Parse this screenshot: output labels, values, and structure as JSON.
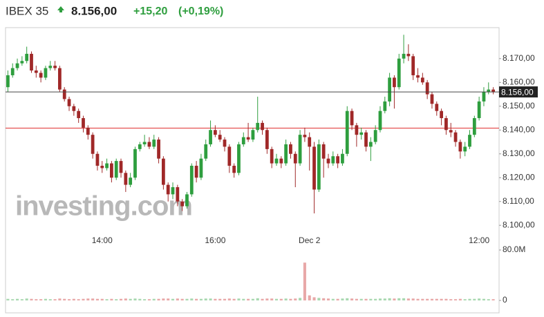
{
  "header": {
    "index": "IBEX 35",
    "price": "8.156,00",
    "change": "+15,20",
    "change_pct": "(+0,19%)"
  },
  "watermark": "investing.com",
  "chart_data": {
    "type": "candlestick",
    "categories": [
      null,
      null,
      null,
      null,
      null,
      null,
      null,
      null,
      null,
      null,
      null,
      null,
      null,
      null,
      null,
      null,
      null,
      null,
      null,
      null,
      "14:00",
      null,
      null,
      null,
      null,
      null,
      null,
      null,
      null,
      null,
      null,
      null,
      null,
      null,
      null,
      null,
      null,
      null,
      null,
      null,
      null,
      null,
      null,
      null,
      "16:00",
      null,
      null,
      null,
      null,
      null,
      null,
      null,
      null,
      null,
      null,
      null,
      null,
      null,
      null,
      null,
      null,
      null,
      null,
      null,
      "Dec 2",
      null,
      null,
      null,
      null,
      null,
      null,
      null,
      null,
      null,
      null,
      null,
      null,
      null,
      null,
      null,
      null,
      null,
      null,
      null,
      null,
      null,
      null,
      null,
      null,
      null,
      null,
      null,
      null,
      null,
      null,
      null,
      null,
      null,
      null,
      null,
      "12:00",
      null,
      null,
      null
    ],
    "open": [
      8158,
      8163,
      8166,
      8168,
      8169,
      8172,
      8165,
      8164,
      8162,
      8166,
      8167,
      8166,
      8157,
      8153,
      8150,
      8148,
      8145,
      8141,
      8138,
      8130,
      8125,
      8124,
      8126,
      8120,
      8127,
      8122,
      8117,
      8120,
      8132,
      8134,
      8135,
      8133,
      8136,
      8128,
      8117,
      8113,
      8116,
      8110,
      8108,
      8113,
      8125,
      8120,
      8128,
      8134,
      8140,
      8138,
      8136,
      8133,
      8125,
      8122,
      8134,
      8137,
      8136,
      8140,
      8143,
      8140,
      8132,
      8126,
      8128,
      8126,
      8134,
      8130,
      8126,
      8138,
      8137,
      8133,
      8115,
      8134,
      8128,
      8126,
      8129,
      8126,
      8130,
      8148,
      8142,
      8138,
      8139,
      8133,
      8135,
      8140,
      8148,
      8152,
      8162,
      8158,
      8170,
      8172,
      8171,
      8163,
      8162,
      8160,
      8155,
      8151,
      8148,
      8145,
      8140,
      8139,
      8135,
      8131,
      8133,
      8138,
      8145,
      8152,
      8156,
      8157
    ],
    "high": [
      8165,
      8168,
      8170,
      8171,
      8175,
      8173,
      8167,
      8165,
      8167,
      8169,
      8169,
      8167,
      8158,
      8154,
      8151,
      8149,
      8146,
      8142,
      8139,
      8131,
      8127,
      8128,
      8127,
      8128,
      8128,
      8123,
      8122,
      8133,
      8135,
      8138,
      8137,
      8138,
      8137,
      8129,
      8118,
      8118,
      8117,
      8111,
      8114,
      8126,
      8127,
      8130,
      8136,
      8144,
      8142,
      8140,
      8137,
      8134,
      8126,
      8135,
      8139,
      8143,
      8141,
      8154,
      8144,
      8141,
      8133,
      8130,
      8129,
      8136,
      8135,
      8131,
      8140,
      8141,
      8139,
      8135,
      8136,
      8135,
      8130,
      8131,
      8130,
      8132,
      8150,
      8149,
      8143,
      8141,
      8140,
      8137,
      8142,
      8150,
      8154,
      8164,
      8163,
      8172,
      8180,
      8176,
      8172,
      8166,
      8164,
      8161,
      8156,
      8152,
      8149,
      8146,
      8143,
      8140,
      8136,
      8135,
      8140,
      8146,
      8154,
      8158,
      8160,
      8158
    ],
    "low": [
      8156,
      8162,
      8165,
      8167,
      8168,
      8164,
      8162,
      8160,
      8161,
      8165,
      8165,
      8156,
      8152,
      8148,
      8146,
      8143,
      8139,
      8136,
      8128,
      8123,
      8122,
      8123,
      8118,
      8119,
      8120,
      8114,
      8116,
      8119,
      8131,
      8133,
      8132,
      8132,
      8126,
      8115,
      8110,
      8111,
      8108,
      8106,
      8107,
      8112,
      8118,
      8119,
      8127,
      8133,
      8137,
      8135,
      8131,
      8122,
      8120,
      8121,
      8133,
      8135,
      8135,
      8139,
      8138,
      8130,
      8124,
      8125,
      8124,
      8125,
      8128,
      8116,
      8125,
      8135,
      8123,
      8105,
      8114,
      8120,
      8124,
      8125,
      8124,
      8125,
      8129,
      8140,
      8133,
      8136,
      8131,
      8127,
      8134,
      8139,
      8147,
      8150,
      8149,
      8157,
      8168,
      8169,
      8161,
      8160,
      8159,
      8153,
      8149,
      8146,
      8142,
      8138,
      8137,
      8133,
      8128,
      8129,
      8132,
      8137,
      8144,
      8150,
      8155,
      8155
    ],
    "close": [
      8163,
      8166,
      8168,
      8169,
      8172,
      8165,
      8164,
      8162,
      8166,
      8167,
      8166,
      8157,
      8153,
      8150,
      8148,
      8145,
      8141,
      8138,
      8130,
      8125,
      8124,
      8126,
      8120,
      8127,
      8122,
      8117,
      8120,
      8132,
      8134,
      8135,
      8133,
      8136,
      8128,
      8117,
      8113,
      8116,
      8110,
      8108,
      8113,
      8125,
      8120,
      8128,
      8134,
      8140,
      8138,
      8136,
      8133,
      8125,
      8122,
      8134,
      8137,
      8136,
      8140,
      8143,
      8140,
      8132,
      8126,
      8128,
      8126,
      8134,
      8130,
      8126,
      8138,
      8137,
      8133,
      8115,
      8134,
      8128,
      8126,
      8129,
      8126,
      8130,
      8148,
      8142,
      8138,
      8139,
      8133,
      8135,
      8140,
      8148,
      8152,
      8162,
      8158,
      8170,
      8172,
      8171,
      8163,
      8162,
      8160,
      8155,
      8151,
      8148,
      8145,
      8140,
      8139,
      8135,
      8131,
      8133,
      8138,
      8145,
      8152,
      8156,
      8157,
      8156
    ],
    "volume": [
      2500000,
      2000000,
      2500000,
      2000000,
      3000000,
      2500000,
      2000000,
      2000000,
      2500000,
      2000000,
      2000000,
      3000000,
      2500000,
      2000000,
      2500000,
      2000000,
      2500000,
      3000000,
      3000000,
      2500000,
      2500000,
      2000000,
      2500000,
      2000000,
      2500000,
      3000000,
      2500000,
      3000000,
      2500000,
      2000000,
      2000000,
      2500000,
      2500000,
      3000000,
      3000000,
      2500000,
      3000000,
      2500000,
      2500000,
      3000000,
      2500000,
      2500000,
      3000000,
      3000000,
      2500000,
      2500000,
      2500000,
      3000000,
      2500000,
      3000000,
      2500000,
      2500000,
      2500000,
      3500000,
      2500000,
      3000000,
      3000000,
      2500000,
      2500000,
      3000000,
      2500000,
      3000000,
      4000000,
      60000000,
      8000000,
      5000000,
      4000000,
      3500000,
      3000000,
      2500000,
      2500000,
      3000000,
      3500000,
      3000000,
      2500000,
      2500000,
      2500000,
      2500000,
      2500000,
      3000000,
      3000000,
      3500000,
      3000000,
      3500000,
      3500000,
      3000000,
      3000000,
      2500000,
      2500000,
      2500000,
      2500000,
      2500000,
      2500000,
      2500000,
      2000000,
      2000000,
      2500000,
      2000000,
      2500000,
      2500000,
      3000000,
      2500000,
      2000000,
      2000000
    ],
    "ylim": [
      8096,
      8183
    ],
    "yticks": [
      {
        "value": 8100,
        "label": "8.100,00"
      },
      {
        "value": 8110,
        "label": "8.110,00"
      },
      {
        "value": 8120,
        "label": "8.120,00"
      },
      {
        "value": 8130,
        "label": "8.130,00"
      },
      {
        "value": 8140,
        "label": "8.140,00"
      },
      {
        "value": 8150,
        "label": "8.150,00"
      },
      {
        "value": 8160,
        "label": "8.160,00"
      },
      {
        "value": 8170,
        "label": "8.170,00"
      }
    ],
    "y2lim": [
      0,
      80000000
    ],
    "y2ticks": [
      {
        "value": 80000000,
        "label": "80.0M"
      },
      0
    ],
    "last_price": {
      "value": 8156,
      "label": "8.156,00"
    },
    "prev_close": 8140.8,
    "up_color": "#2e9e3e",
    "down_color": "#a02828",
    "volume_up_color": "#a8d8b0",
    "volume_down_color": "#e8a8a8",
    "last_line_color": "#444444",
    "prev_close_color": "#e03030"
  }
}
